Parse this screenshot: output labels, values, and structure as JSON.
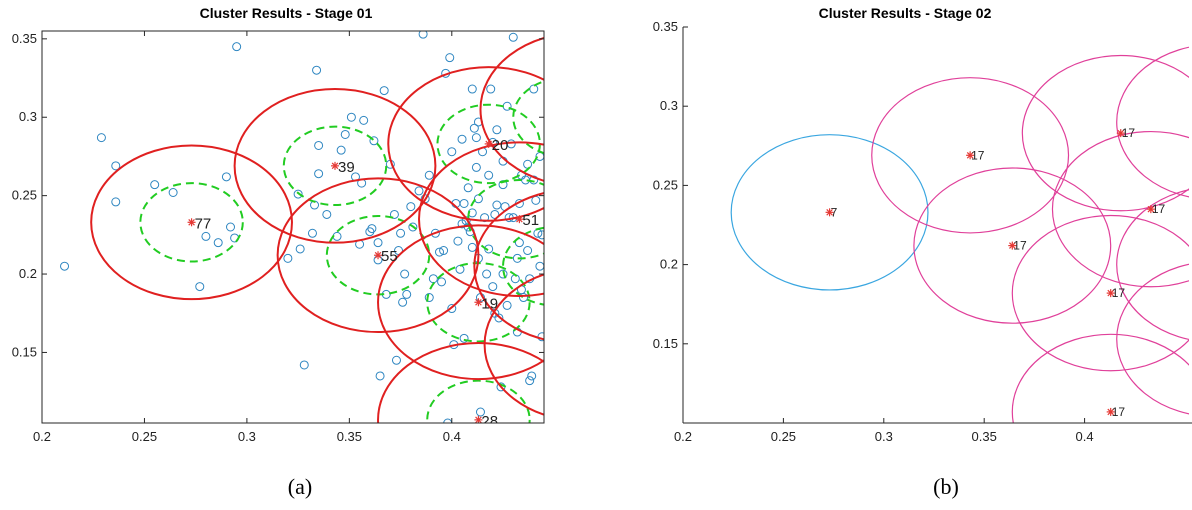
{
  "chart_data": [
    {
      "type": "scatter",
      "title": "Cluster Results - Stage 01",
      "caption": "(a)",
      "xlabel": "",
      "ylabel": "",
      "xlim": [
        0.2,
        0.445
      ],
      "ylim": [
        0.105,
        0.355
      ],
      "xticks": [
        "0.2",
        "0.25",
        "0.3",
        "0.35",
        "0.4"
      ],
      "xtick_values": [
        0.2,
        0.25,
        0.3,
        0.35,
        0.4
      ],
      "yticks": [
        "0.15",
        "0.2",
        "0.25",
        "0.3",
        "0.35"
      ],
      "ytick_values": [
        0.15,
        0.2,
        0.25,
        0.3,
        0.35
      ],
      "colors": {
        "points": "#2E86C1",
        "centers": "#E53935",
        "outer_circles": "#E02020",
        "inner_circles": "#22CC22"
      },
      "points": [
        [
          0.211,
          0.205
        ],
        [
          0.229,
          0.287
        ],
        [
          0.236,
          0.269
        ],
        [
          0.236,
          0.246
        ],
        [
          0.255,
          0.257
        ],
        [
          0.264,
          0.252
        ],
        [
          0.277,
          0.192
        ],
        [
          0.28,
          0.224
        ],
        [
          0.286,
          0.22
        ],
        [
          0.29,
          0.262
        ],
        [
          0.292,
          0.23
        ],
        [
          0.294,
          0.223
        ],
        [
          0.295,
          0.345
        ],
        [
          0.32,
          0.21
        ],
        [
          0.325,
          0.251
        ],
        [
          0.326,
          0.216
        ],
        [
          0.328,
          0.142
        ],
        [
          0.332,
          0.226
        ],
        [
          0.333,
          0.244
        ],
        [
          0.334,
          0.33
        ],
        [
          0.335,
          0.264
        ],
        [
          0.335,
          0.282
        ],
        [
          0.339,
          0.238
        ],
        [
          0.344,
          0.224
        ],
        [
          0.346,
          0.279
        ],
        [
          0.348,
          0.289
        ],
        [
          0.351,
          0.3
        ],
        [
          0.353,
          0.262
        ],
        [
          0.355,
          0.219
        ],
        [
          0.356,
          0.258
        ],
        [
          0.357,
          0.298
        ],
        [
          0.36,
          0.227
        ],
        [
          0.361,
          0.229
        ],
        [
          0.362,
          0.285
        ],
        [
          0.364,
          0.209
        ],
        [
          0.364,
          0.22
        ],
        [
          0.365,
          0.135
        ],
        [
          0.367,
          0.317
        ],
        [
          0.368,
          0.187
        ],
        [
          0.37,
          0.27
        ],
        [
          0.372,
          0.238
        ],
        [
          0.373,
          0.145
        ],
        [
          0.374,
          0.215
        ],
        [
          0.375,
          0.226
        ],
        [
          0.376,
          0.182
        ],
        [
          0.377,
          0.2
        ],
        [
          0.378,
          0.187
        ],
        [
          0.38,
          0.243
        ],
        [
          0.381,
          0.23
        ],
        [
          0.384,
          0.253
        ],
        [
          0.386,
          0.353
        ],
        [
          0.387,
          0.248
        ],
        [
          0.389,
          0.185
        ],
        [
          0.389,
          0.263
        ],
        [
          0.391,
          0.197
        ],
        [
          0.392,
          0.226
        ],
        [
          0.394,
          0.214
        ],
        [
          0.395,
          0.195
        ],
        [
          0.396,
          0.215
        ],
        [
          0.397,
          0.328
        ],
        [
          0.398,
          0.105
        ],
        [
          0.399,
          0.338
        ],
        [
          0.4,
          0.278
        ],
        [
          0.4,
          0.178
        ],
        [
          0.401,
          0.155
        ],
        [
          0.402,
          0.245
        ],
        [
          0.403,
          0.221
        ],
        [
          0.404,
          0.203
        ],
        [
          0.405,
          0.232
        ],
        [
          0.405,
          0.286
        ],
        [
          0.406,
          0.159
        ],
        [
          0.406,
          0.245
        ],
        [
          0.407,
          0.234
        ],
        [
          0.408,
          0.255
        ],
        [
          0.408,
          0.23
        ],
        [
          0.409,
          0.227
        ],
        [
          0.41,
          0.217
        ],
        [
          0.41,
          0.318
        ],
        [
          0.41,
          0.239
        ],
        [
          0.411,
          0.293
        ],
        [
          0.412,
          0.268
        ],
        [
          0.412,
          0.287
        ],
        [
          0.413,
          0.297
        ],
        [
          0.413,
          0.21
        ],
        [
          0.413,
          0.248
        ],
        [
          0.414,
          0.185
        ],
        [
          0.414,
          0.112
        ],
        [
          0.415,
          0.278
        ],
        [
          0.416,
          0.236
        ],
        [
          0.417,
          0.2
        ],
        [
          0.418,
          0.263
        ],
        [
          0.418,
          0.216
        ],
        [
          0.419,
          0.318
        ],
        [
          0.42,
          0.284
        ],
        [
          0.42,
          0.192
        ],
        [
          0.421,
          0.175
        ],
        [
          0.421,
          0.238
        ],
        [
          0.422,
          0.244
        ],
        [
          0.422,
          0.292
        ],
        [
          0.423,
          0.172
        ],
        [
          0.424,
          0.128
        ],
        [
          0.425,
          0.2
        ],
        [
          0.425,
          0.257
        ],
        [
          0.425,
          0.272
        ],
        [
          0.426,
          0.243
        ],
        [
          0.427,
          0.307
        ],
        [
          0.427,
          0.18
        ],
        [
          0.428,
          0.236
        ],
        [
          0.429,
          0.283
        ],
        [
          0.43,
          0.236
        ],
        [
          0.43,
          0.351
        ],
        [
          0.431,
          0.197
        ],
        [
          0.432,
          0.163
        ],
        [
          0.432,
          0.21
        ],
        [
          0.433,
          0.245
        ],
        [
          0.433,
          0.22
        ],
        [
          0.434,
          0.19
        ],
        [
          0.434,
          0.263
        ],
        [
          0.435,
          0.185
        ],
        [
          0.436,
          0.26
        ],
        [
          0.437,
          0.215
        ],
        [
          0.437,
          0.27
        ],
        [
          0.438,
          0.197
        ],
        [
          0.438,
          0.132
        ],
        [
          0.439,
          0.135
        ],
        [
          0.44,
          0.318
        ],
        [
          0.44,
          0.26
        ],
        [
          0.441,
          0.247
        ],
        [
          0.442,
          0.226
        ],
        [
          0.443,
          0.275
        ],
        [
          0.443,
          0.205
        ],
        [
          0.444,
          0.16
        ],
        [
          0.444,
          0.225
        ]
      ],
      "centers": [
        {
          "x": 0.273,
          "y": 0.233,
          "label": "77"
        },
        {
          "x": 0.343,
          "y": 0.269,
          "label": "39"
        },
        {
          "x": 0.364,
          "y": 0.212,
          "label": "55"
        },
        {
          "x": 0.413,
          "y": 0.182,
          "label": "19"
        },
        {
          "x": 0.418,
          "y": 0.283,
          "label": "20"
        },
        {
          "x": 0.433,
          "y": 0.235,
          "label": "51"
        },
        {
          "x": 0.413,
          "y": 0.107,
          "label": "28"
        }
      ],
      "outer_circles": [
        {
          "x": 0.273,
          "y": 0.233,
          "r": 0.049
        },
        {
          "x": 0.343,
          "y": 0.269,
          "r": 0.049
        },
        {
          "x": 0.364,
          "y": 0.212,
          "r": 0.049
        },
        {
          "x": 0.413,
          "y": 0.182,
          "r": 0.049
        },
        {
          "x": 0.418,
          "y": 0.283,
          "r": 0.049
        },
        {
          "x": 0.433,
          "y": 0.235,
          "r": 0.049
        },
        {
          "x": 0.413,
          "y": 0.107,
          "r": 0.049
        },
        {
          "x": 0.463,
          "y": 0.305,
          "r": 0.049
        },
        {
          "x": 0.46,
          "y": 0.205,
          "r": 0.049
        },
        {
          "x": 0.465,
          "y": 0.155,
          "r": 0.049
        }
      ],
      "inner_circles": [
        {
          "x": 0.273,
          "y": 0.233,
          "r": 0.025
        },
        {
          "x": 0.343,
          "y": 0.269,
          "r": 0.025
        },
        {
          "x": 0.364,
          "y": 0.212,
          "r": 0.025
        },
        {
          "x": 0.413,
          "y": 0.182,
          "r": 0.025
        },
        {
          "x": 0.418,
          "y": 0.283,
          "r": 0.025
        },
        {
          "x": 0.433,
          "y": 0.235,
          "r": 0.025
        },
        {
          "x": 0.413,
          "y": 0.107,
          "r": 0.025
        },
        {
          "x": 0.455,
          "y": 0.3,
          "r": 0.025
        },
        {
          "x": 0.45,
          "y": 0.205,
          "r": 0.025
        }
      ]
    },
    {
      "type": "scatter",
      "title": "Cluster Results - Stage 02",
      "caption": "(b)",
      "xlabel": "",
      "ylabel": "",
      "xlim": [
        0.2,
        0.452
      ],
      "ylim": [
        0.1,
        0.35
      ],
      "xticks": [
        "0.2",
        "0.25",
        "0.3",
        "0.35",
        "0.4"
      ],
      "xtick_values": [
        0.2,
        0.25,
        0.3,
        0.35,
        0.4
      ],
      "yticks": [
        "0.15",
        "0.2",
        "0.25",
        "0.3",
        "0.35"
      ],
      "ytick_values": [
        0.15,
        0.2,
        0.25,
        0.3,
        0.35
      ],
      "colors": {
        "centers": "#E53935",
        "blue_circle": "#3AA6E0",
        "magenta_circles": "#E0409A"
      },
      "centers": [
        {
          "x": 0.273,
          "y": 0.233,
          "label": "7"
        },
        {
          "x": 0.343,
          "y": 0.269,
          "label": "17"
        },
        {
          "x": 0.364,
          "y": 0.212,
          "label": "17"
        },
        {
          "x": 0.413,
          "y": 0.182,
          "label": "17"
        },
        {
          "x": 0.418,
          "y": 0.283,
          "label": "17"
        },
        {
          "x": 0.433,
          "y": 0.235,
          "label": "17"
        },
        {
          "x": 0.413,
          "y": 0.107,
          "label": "17"
        }
      ],
      "blue_circles": [
        {
          "x": 0.273,
          "y": 0.233,
          "r": 0.049
        }
      ],
      "magenta_circles": [
        {
          "x": 0.343,
          "y": 0.269,
          "r": 0.049
        },
        {
          "x": 0.364,
          "y": 0.212,
          "r": 0.049
        },
        {
          "x": 0.413,
          "y": 0.182,
          "r": 0.049
        },
        {
          "x": 0.418,
          "y": 0.283,
          "r": 0.049
        },
        {
          "x": 0.433,
          "y": 0.235,
          "r": 0.049
        },
        {
          "x": 0.413,
          "y": 0.107,
          "r": 0.049
        },
        {
          "x": 0.465,
          "y": 0.29,
          "r": 0.049
        },
        {
          "x": 0.465,
          "y": 0.2,
          "r": 0.049
        },
        {
          "x": 0.465,
          "y": 0.153,
          "r": 0.049
        }
      ]
    }
  ]
}
